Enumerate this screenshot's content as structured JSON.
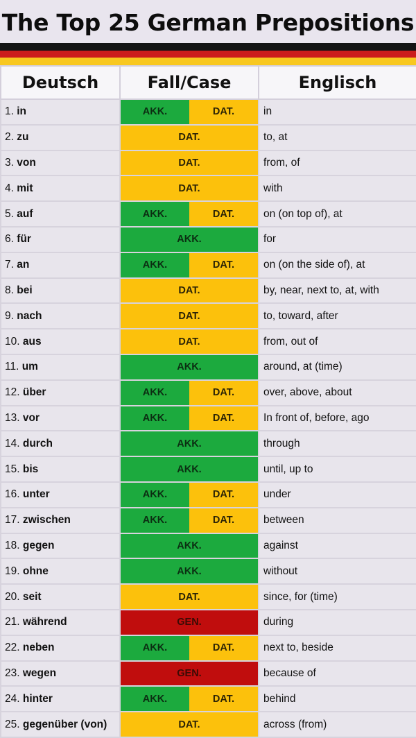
{
  "title": "The Top 25 German Prepositions",
  "colors": {
    "akk": "#1caa3e",
    "dat": "#fcc10c",
    "gen": "#c00d0d",
    "flag_black": "#141414",
    "flag_red": "#cc1c1c",
    "flag_gold": "#f8c820"
  },
  "headers": [
    "Deutsch",
    "Fall/Case",
    "Englisch"
  ],
  "rows": [
    {
      "num": "1.",
      "word": "in",
      "cases": [
        "AKK.",
        "DAT."
      ],
      "en": "in"
    },
    {
      "num": "2.",
      "word": "zu",
      "cases": [
        "DAT."
      ],
      "en": "to, at"
    },
    {
      "num": "3.",
      "word": "von",
      "cases": [
        "DAT."
      ],
      "en": "from, of"
    },
    {
      "num": "4.",
      "word": "mit",
      "cases": [
        "DAT."
      ],
      "en": "with"
    },
    {
      "num": "5.",
      "word": "auf",
      "cases": [
        "AKK.",
        "DAT."
      ],
      "en": "on (on top of), at"
    },
    {
      "num": "6.",
      "word": "für",
      "cases": [
        "AKK."
      ],
      "en": "for"
    },
    {
      "num": "7.",
      "word": "an",
      "cases": [
        "AKK.",
        "DAT."
      ],
      "en": "on (on the side of), at"
    },
    {
      "num": "8.",
      "word": "bei",
      "cases": [
        "DAT."
      ],
      "en": "by, near, next to, at, with"
    },
    {
      "num": "9.",
      "word": "nach",
      "cases": [
        "DAT."
      ],
      "en": "to, toward, after"
    },
    {
      "num": "10.",
      "word": "aus",
      "cases": [
        "DAT."
      ],
      "en": "from, out of"
    },
    {
      "num": "11.",
      "word": "um",
      "cases": [
        "AKK."
      ],
      "en": "around, at (time)"
    },
    {
      "num": "12.",
      "word": "über",
      "cases": [
        "AKK.",
        "DAT."
      ],
      "en": "over, above, about"
    },
    {
      "num": "13.",
      "word": "vor",
      "cases": [
        "AKK.",
        "DAT."
      ],
      "en": "In front of, before, ago"
    },
    {
      "num": "14.",
      "word": "durch",
      "cases": [
        "AKK."
      ],
      "en": "through"
    },
    {
      "num": "15.",
      "word": "bis",
      "cases": [
        "AKK."
      ],
      "en": "until, up to"
    },
    {
      "num": "16.",
      "word": "unter",
      "cases": [
        "AKK.",
        "DAT."
      ],
      "en": "under"
    },
    {
      "num": "17.",
      "word": "zwischen",
      "cases": [
        "AKK.",
        "DAT."
      ],
      "en": "between"
    },
    {
      "num": "18.",
      "word": "gegen",
      "cases": [
        "AKK."
      ],
      "en": "against"
    },
    {
      "num": "19.",
      "word": "ohne",
      "cases": [
        "AKK."
      ],
      "en": "without"
    },
    {
      "num": "20.",
      "word": "seit",
      "cases": [
        "DAT."
      ],
      "en": "since, for (time)"
    },
    {
      "num": "21.",
      "word": "während",
      "cases": [
        "GEN."
      ],
      "en": "during"
    },
    {
      "num": "22.",
      "word": "neben",
      "cases": [
        "AKK.",
        "DAT."
      ],
      "en": "next to, beside"
    },
    {
      "num": "23.",
      "word": "wegen",
      "cases": [
        "GEN."
      ],
      "en": "because  of"
    },
    {
      "num": "24.",
      "word": "hinter",
      "cases": [
        "AKK.",
        "DAT."
      ],
      "en": "behind"
    },
    {
      "num": "25.",
      "word": "gegenüber (von)",
      "cases": [
        "DAT."
      ],
      "en": "across  (from)"
    }
  ]
}
